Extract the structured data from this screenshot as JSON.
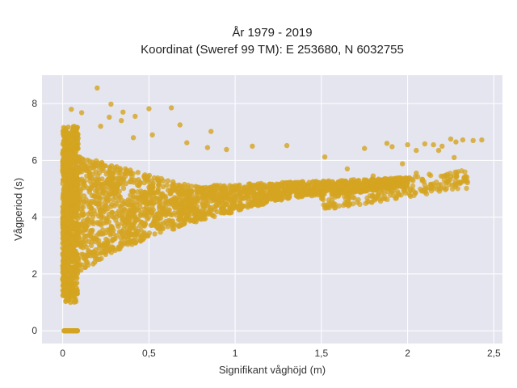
{
  "chart_data": {
    "type": "scatter",
    "title_line1": "År 1979 - 2019",
    "title_line2": "Koordinat (Sweref 99 TM): E 253680, N 6032755",
    "xlabel": "Signifikant våghöjd (m)",
    "ylabel": "Vågperiod (s)",
    "xlim": [
      -0.12,
      2.55
    ],
    "ylim": [
      -0.45,
      9.0
    ],
    "x_ticks": [
      0,
      0.5,
      1,
      1.5,
      2,
      2.5
    ],
    "x_tick_labels": [
      "0",
      "0,5",
      "1",
      "1,5",
      "2",
      "2,5"
    ],
    "y_ticks": [
      0,
      2,
      4,
      6,
      8
    ],
    "y_tick_labels": [
      "0",
      "2",
      "4",
      "6",
      "8"
    ],
    "grid": true,
    "background_color": "#e5e5f0",
    "marker_color": "#d4a420",
    "series": [
      {
        "points": [
          [
            0.2,
            8.55
          ],
          [
            0.28,
            7.98
          ],
          [
            0.35,
            7.7
          ],
          [
            0.5,
            7.82
          ],
          [
            0.63,
            7.85
          ],
          [
            0.05,
            7.8
          ],
          [
            0.11,
            7.68
          ],
          [
            0.27,
            7.52
          ],
          [
            0.34,
            7.4
          ],
          [
            0.22,
            7.2
          ],
          [
            0.42,
            7.55
          ],
          [
            0.68,
            7.25
          ],
          [
            0.86,
            7.02
          ],
          [
            0.52,
            6.9
          ],
          [
            0.41,
            6.8
          ],
          [
            0.72,
            6.62
          ],
          [
            0.84,
            6.45
          ],
          [
            0.95,
            6.38
          ],
          [
            1.1,
            6.5
          ],
          [
            1.3,
            6.52
          ],
          [
            1.52,
            6.12
          ],
          [
            1.75,
            6.42
          ],
          [
            1.88,
            6.6
          ],
          [
            1.91,
            6.48
          ],
          [
            2.0,
            6.55
          ],
          [
            2.05,
            6.35
          ],
          [
            2.1,
            6.58
          ],
          [
            2.15,
            6.55
          ],
          [
            2.2,
            6.5
          ],
          [
            2.25,
            6.75
          ],
          [
            2.28,
            6.65
          ],
          [
            2.32,
            6.72
          ],
          [
            2.38,
            6.7
          ],
          [
            2.43,
            6.72
          ],
          [
            2.27,
            6.1
          ],
          [
            2.18,
            6.35
          ],
          [
            1.97,
            5.88
          ],
          [
            2.05,
            5.55
          ],
          [
            1.8,
            5.45
          ],
          [
            1.65,
            5.7
          ],
          [
            0.06,
            0.0
          ],
          [
            0.08,
            0.0
          ]
        ]
      }
    ]
  }
}
